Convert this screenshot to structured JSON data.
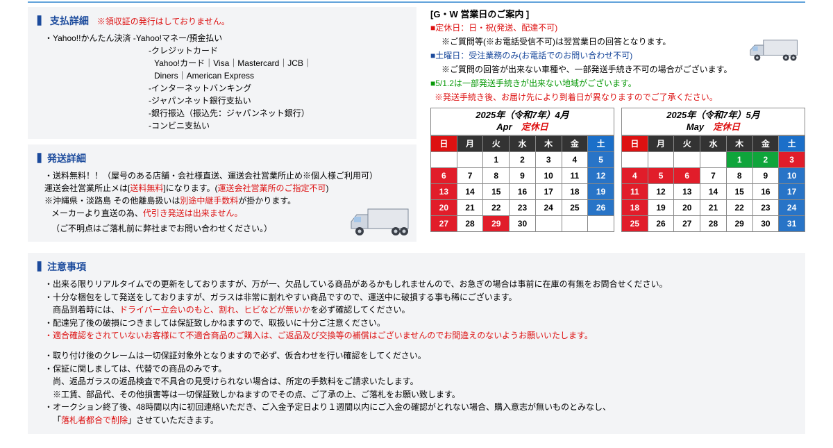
{
  "payment": {
    "title": "支払詳細",
    "receipt_note": "※領収証の発行はしておりません。",
    "line1": "・Yahoo!!かんたん決済 -Yahoo!マネー/預金払い",
    "line2": "-クレジットカード",
    "line3": "Yahoo!カード｜Visa｜Mastercard｜JCB｜",
    "line4": "Diners｜American Express",
    "line5": "-インターネットバンキング",
    "line6": "-ジャパンネット銀行支払い",
    "line7": "-銀行振込（振込先：ジャパンネット銀行）",
    "line8": "-コンビニ支払い"
  },
  "shipping": {
    "title": "発送詳細",
    "l1": "・送料無料！！（屋号のある店舗・会社様直送、運送会社営業所止め※個人様ご利用可）",
    "l2a": "運送会社営業所止メは[",
    "l2b": "送料無料",
    "l2c": "]になります。(",
    "l2d": "運送会社営業所のご指定不可",
    "l2e": ")",
    "l3a": "※沖縄県・淡路島 その他離島扱いは",
    "l3b": "別途中継手数料",
    "l3c": "が掛かります。",
    "l4a": "メーカーより直送の為、",
    "l4b": "代引き発送は出来ません。",
    "l5": "（ご不明点はご落札前に弊社までお問い合わせください。）"
  },
  "gw": {
    "title": "[G・W 営業日のご案内 ]",
    "l1": "定休日：日・祝(発送、配達不可)",
    "l1b": "※ご質問等(※お電話受信不可)は翌営業日の回答となります。",
    "l2": "土曜日：受注業務のみ(お電話でのお問い合わせ不可)",
    "l2b": "※ご質問の回答が出来ない車種や、一部発送手続き不可の場合がございます。",
    "l3": "5/1.2は一部発送手続きが出来ない地域がございます。",
    "l4": "※発送手続き後、お届け先により到着日が異なりますのでご了承ください。"
  },
  "cal_a": {
    "title1": "2025年（令和7年）4月",
    "title2": "Apr　",
    "tei": "定休日",
    "dow": [
      "日",
      "月",
      "火",
      "水",
      "木",
      "金",
      "土"
    ],
    "weeks": [
      [
        null,
        null,
        {
          "n": "1"
        },
        {
          "n": "2"
        },
        {
          "n": "3"
        },
        {
          "n": "4"
        },
        {
          "n": "5",
          "c": "b"
        }
      ],
      [
        {
          "n": "6",
          "c": "r"
        },
        {
          "n": "7"
        },
        {
          "n": "8"
        },
        {
          "n": "9"
        },
        {
          "n": "10"
        },
        {
          "n": "11"
        },
        {
          "n": "12",
          "c": "b"
        }
      ],
      [
        {
          "n": "13",
          "c": "r"
        },
        {
          "n": "14"
        },
        {
          "n": "15"
        },
        {
          "n": "16"
        },
        {
          "n": "17"
        },
        {
          "n": "18"
        },
        {
          "n": "19",
          "c": "b"
        }
      ],
      [
        {
          "n": "20",
          "c": "r"
        },
        {
          "n": "21"
        },
        {
          "n": "22"
        },
        {
          "n": "23"
        },
        {
          "n": "24"
        },
        {
          "n": "25"
        },
        {
          "n": "26",
          "c": "b"
        }
      ],
      [
        {
          "n": "27",
          "c": "r"
        },
        {
          "n": "28"
        },
        {
          "n": "29",
          "c": "r"
        },
        {
          "n": "30"
        },
        null,
        null,
        null
      ]
    ]
  },
  "cal_b": {
    "title1": "2025年（令和7年）5月",
    "title2": "May　",
    "tei": "定休日",
    "dow": [
      "日",
      "月",
      "火",
      "水",
      "木",
      "金",
      "土"
    ],
    "weeks": [
      [
        null,
        null,
        null,
        null,
        {
          "n": "1",
          "c": "g"
        },
        {
          "n": "2",
          "c": "g"
        },
        {
          "n": "3",
          "c": "r"
        }
      ],
      [
        {
          "n": "4",
          "c": "r"
        },
        {
          "n": "5",
          "c": "r"
        },
        {
          "n": "6",
          "c": "r"
        },
        {
          "n": "7"
        },
        {
          "n": "8"
        },
        {
          "n": "9"
        },
        {
          "n": "10",
          "c": "b"
        }
      ],
      [
        {
          "n": "11",
          "c": "r"
        },
        {
          "n": "12"
        },
        {
          "n": "13"
        },
        {
          "n": "14"
        },
        {
          "n": "15"
        },
        {
          "n": "16"
        },
        {
          "n": "17",
          "c": "b"
        }
      ],
      [
        {
          "n": "18",
          "c": "r"
        },
        {
          "n": "19"
        },
        {
          "n": "20"
        },
        {
          "n": "21"
        },
        {
          "n": "22"
        },
        {
          "n": "23"
        },
        {
          "n": "24",
          "c": "b"
        }
      ],
      [
        {
          "n": "25",
          "c": "r"
        },
        {
          "n": "26"
        },
        {
          "n": "27"
        },
        {
          "n": "28"
        },
        {
          "n": "29"
        },
        {
          "n": "30"
        },
        {
          "n": "31",
          "c": "b"
        }
      ]
    ]
  },
  "attention": {
    "title": "注意事項",
    "l1": "・出来る限りリアルタイムでの更新をしておりますが、万が一、欠品している商品があるかもしれませんので、お急ぎの場合は事前に在庫の有無をお問合せください。",
    "l2": "・十分な梱包をして発送をしておりますが、ガラスは非常に割れやすい商品ですので、運送中に破損する事も稀にございます。",
    "l2b_a": "商品到着時には、",
    "l2b_b": "ドライバー立会いのもと、割れ、ヒビなどが無いか",
    "l2b_c": "を必ず確認してください。",
    "l3": "・配達完了後の破損につきましては保証致しかねますので、取扱いに十分ご注意ください。",
    "l4": "・適合確認をされていないお客様にて不適合商品のご購入は、ご返品及び交換等の補償はございませんのでお間違えのないようお願いいたします。",
    "l5": "・取り付け後のクレームは一切保証対象外となりますので必ず、仮合わせを行い確認をしてください。",
    "l6": "・保証に関しましては、代替での商品のみです。",
    "l6b": "尚、返品ガラスの返品検査で不具合の見受けられない場合は、所定の手数料をご請求いたします。",
    "l6c": "※工賃、部品代、その他損害等は一切保証致しかねますのでその点、ご了承の上、ご落札をお願い致します。",
    "l7": "・オークション終了後、48時間以内に初回連絡いただき、ご入金予定日より１週間以内にご入金の確認がとれない場合、購入意志が無いものとみなし、",
    "l7b_a": "「",
    "l7b_b": "落札者都合で削除",
    "l7b_c": "」させていただきます。"
  }
}
